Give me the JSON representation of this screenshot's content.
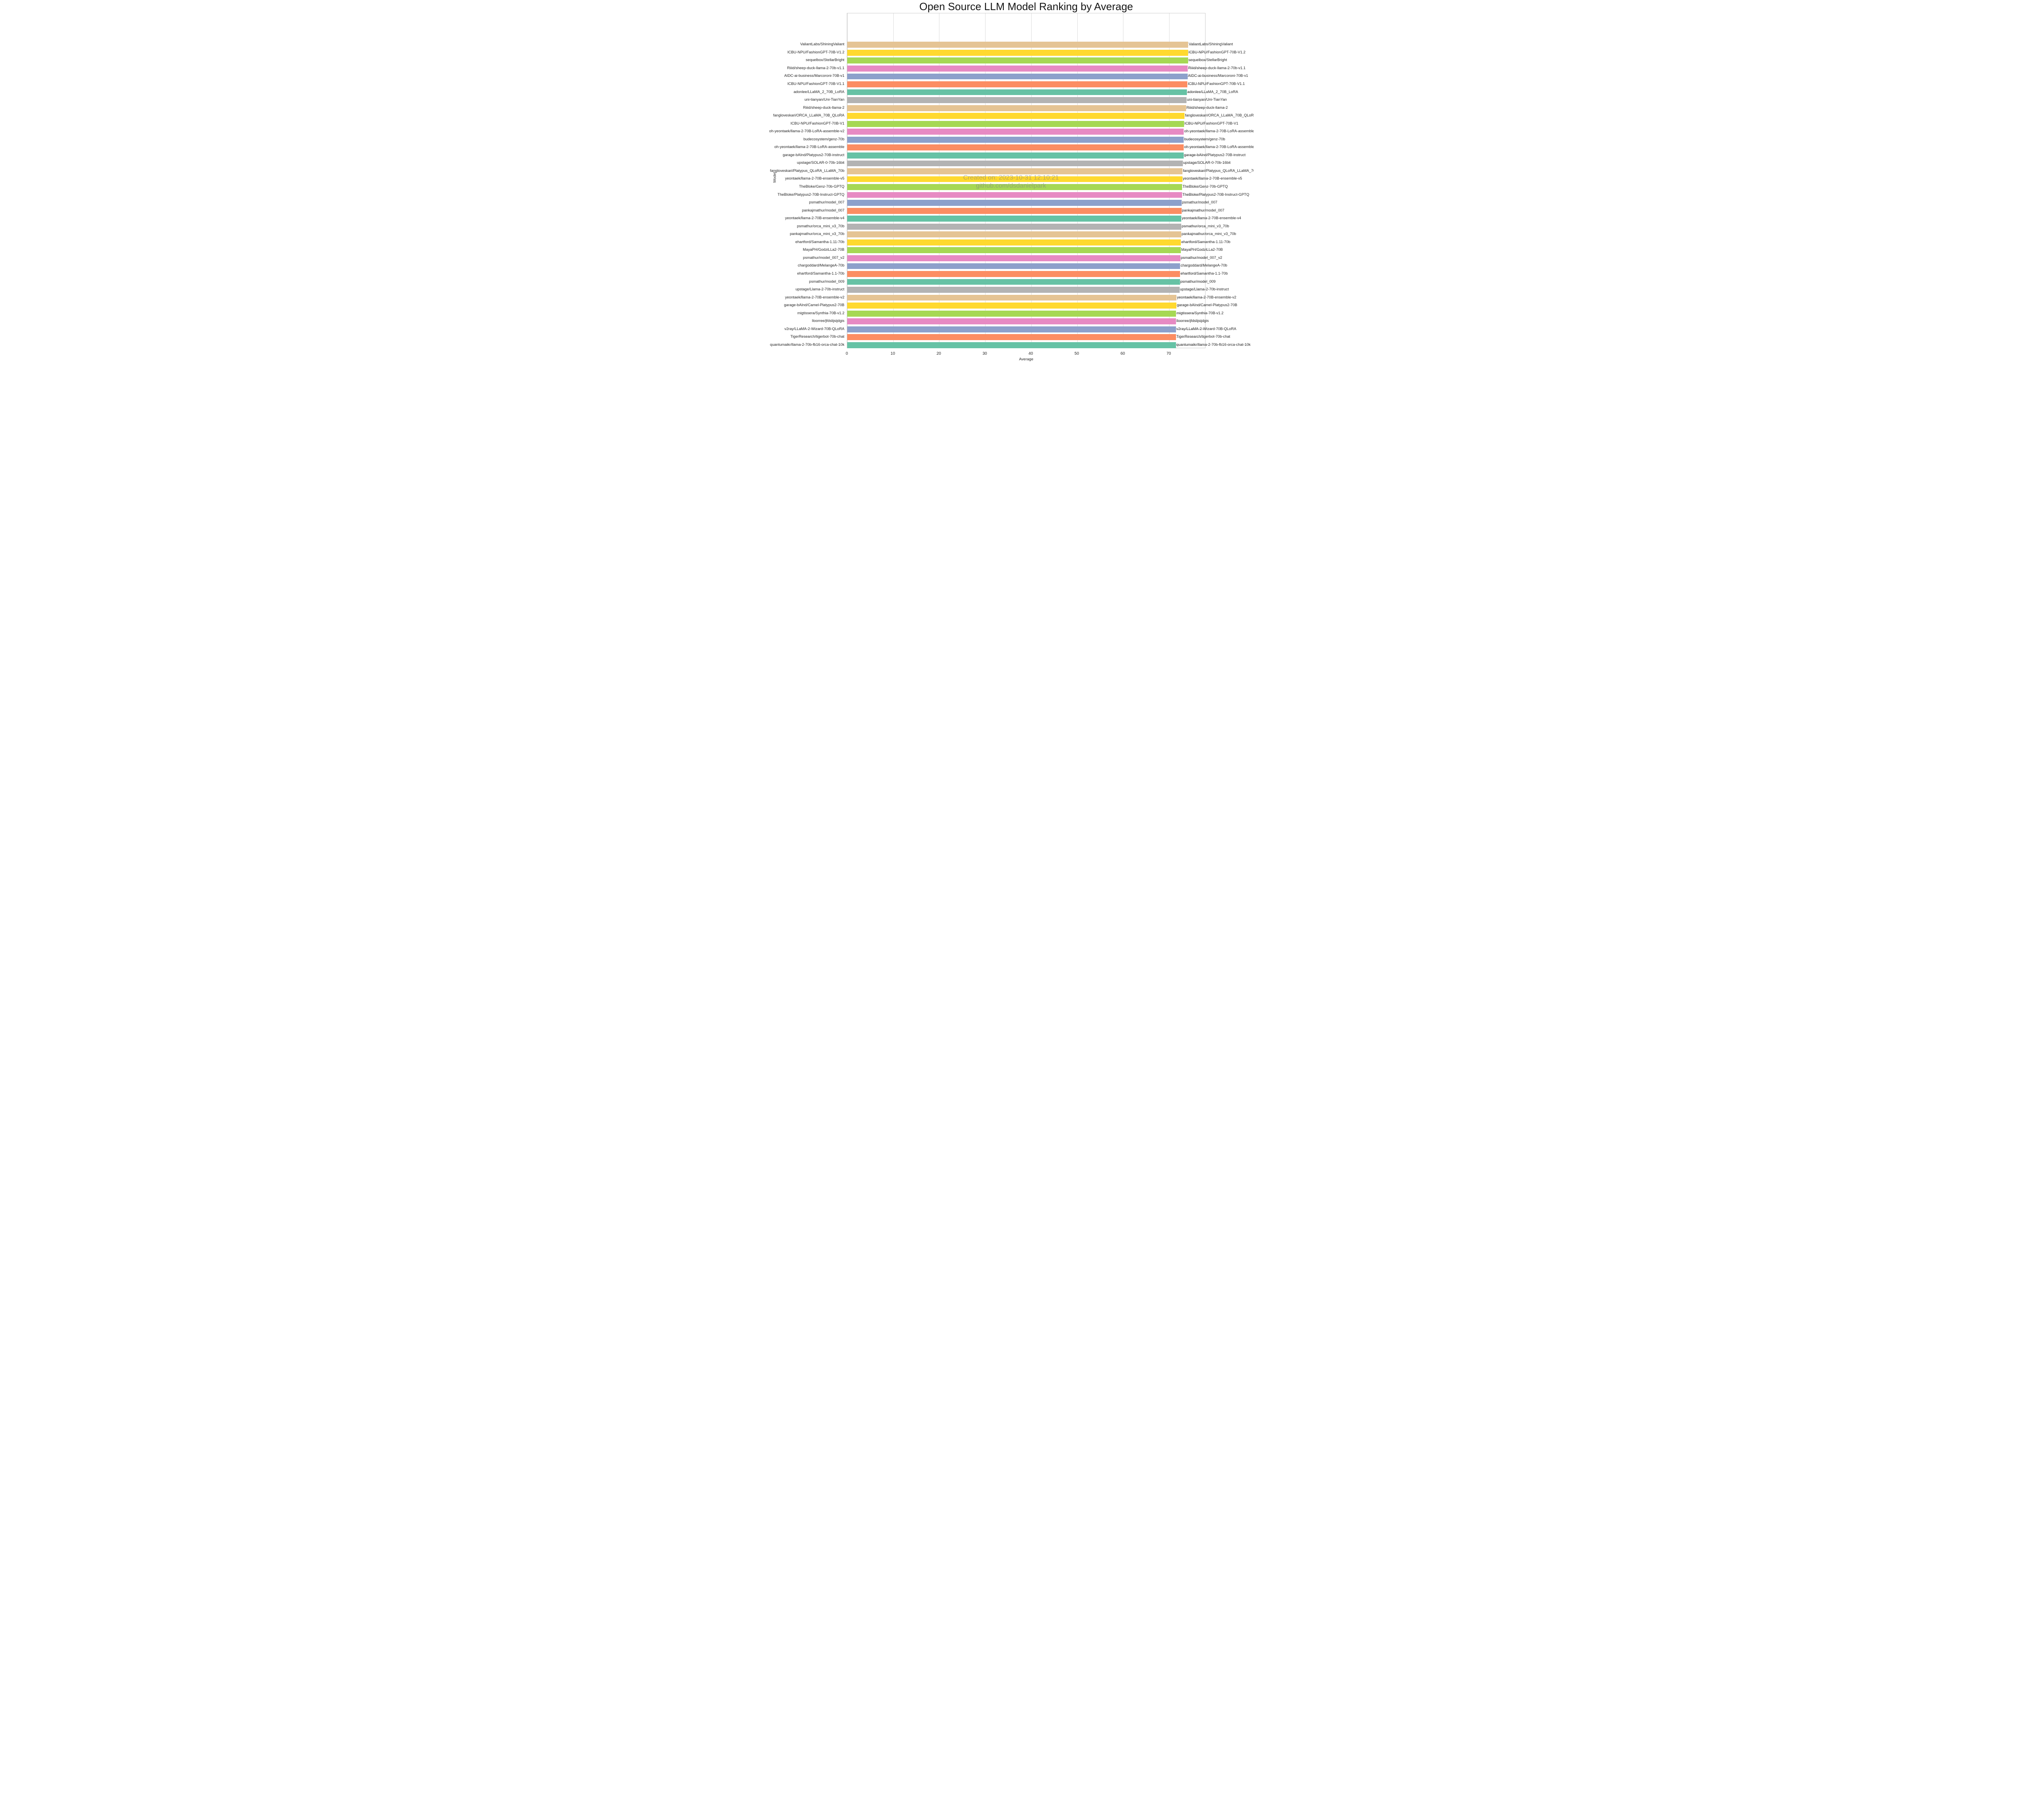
{
  "page": {
    "title": "Open Source LLM Model Ranking by Average"
  },
  "chart_data": {
    "type": "bar",
    "orientation": "horizontal",
    "title": "Open Source LLM Model Ranking by Average",
    "xlabel": "Average",
    "ylabel": "Model",
    "xlim": [
      0,
      78
    ],
    "xticks": [
      0,
      10,
      20,
      30,
      40,
      50,
      60,
      70
    ],
    "grid": true,
    "legend": "none",
    "bar_labels": "category name repeated at end of each bar",
    "palette_cycle": [
      "#e5c494",
      "#ffd92f",
      "#a6d854",
      "#e78ac3",
      "#8da0cb",
      "#fc8d62",
      "#66c2a5",
      "#b3b3b3"
    ],
    "grid_color": "#dcdcdc",
    "spine_color": "#cccccc",
    "watermark": {
      "line1": "Created on: 2023-10-31 12:10:21",
      "line2": "github.com/dsdanielpark"
    },
    "categories": [
      "ValiantLabs/ShiningValiant",
      "ICBU-NPU/FashionGPT-70B-V1.2",
      "sequelbox/StellarBright",
      "Riiid/sheep-duck-llama-2-70b-v1.1",
      "AIDC-ai-business/Marcoroni-70B-v1",
      "ICBU-NPU/FashionGPT-70B-V1.1",
      "adonlee/LLaMA_2_70B_LoRA",
      "uni-tianyan/Uni-TianYan",
      "Riiid/sheep-duck-llama-2",
      "fangloveskari/ORCA_LLaMA_70B_QLoRA",
      "ICBU-NPU/FashionGPT-70B-V1",
      "oh-yeontaek/llama-2-70B-LoRA-assemble-v2",
      "budecosystem/genz-70b",
      "oh-yeontaek/llama-2-70B-LoRA-assemble",
      "garage-bAInd/Platypus2-70B-instruct",
      "upstage/SOLAR-0-70b-16bit",
      "fangloveskari/Platypus_QLoRA_LLaMA_70b",
      "yeontaek/llama-2-70B-ensemble-v5",
      "TheBloke/Genz-70b-GPTQ",
      "TheBloke/Platypus2-70B-Instruct-GPTQ",
      "psmathur/model_007",
      "pankajmathur/model_007",
      "yeontaek/llama-2-70B-ensemble-v4",
      "psmathur/orca_mini_v3_70b",
      "pankajmathur/orca_mini_v3_70b",
      "ehartford/Samantha-1.11-70b",
      "MayaPH/GodziLLa2-70B",
      "psmathur/model_007_v2",
      "chargoddard/MelangeA-70b",
      "ehartford/Samantha-1.1-70b",
      "psmathur/model_009",
      "upstage/Llama-2-70b-instruct",
      "yeontaek/llama-2-70B-ensemble-v2",
      "garage-bAInd/Camel-Platypus2-70B",
      "migtissera/Synthia-70B-v1.2",
      "lloorree/jfdslijsijdgis",
      "v2ray/LLaMA-2-Wizard-70B-QLoRA",
      "TigerResearch/tigerbot-70b-chat",
      "quantumaikr/llama-2-70b-fb16-orca-chat-10k"
    ],
    "values": [
      74.17,
      74.11,
      74.1,
      74.07,
      74.0,
      73.97,
      73.86,
      73.78,
      73.67,
      73.36,
      73.23,
      73.2,
      73.19,
      73.17,
      73.13,
      72.95,
      72.92,
      72.87,
      72.81,
      72.79,
      72.71,
      72.69,
      72.66,
      72.64,
      72.62,
      72.56,
      72.54,
      72.45,
      72.41,
      72.39,
      72.34,
      72.25,
      71.61,
      71.59,
      71.51,
      71.49,
      71.47,
      71.46,
      71.45
    ]
  }
}
